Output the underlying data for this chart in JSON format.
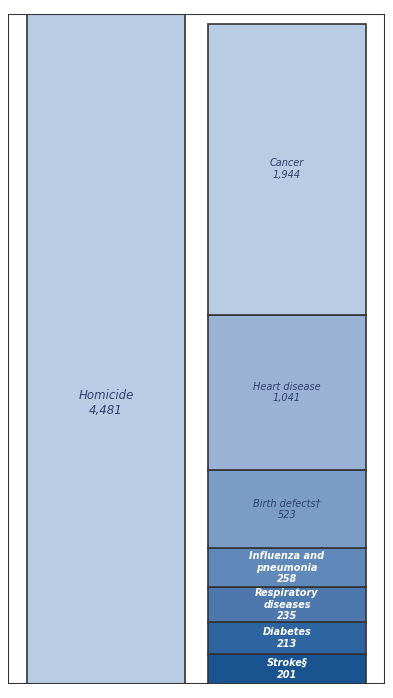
{
  "homicide_value": 4481,
  "homicide_label": "Homicide\n4,481",
  "homicide_color": "#b8cce4",
  "right_bars": [
    {
      "label": "Cancer\n1,944",
      "value": 1944,
      "color": "#b8cce4",
      "text_color": "#2f3f6b"
    },
    {
      "label": "Heart disease\n1,041",
      "value": 1041,
      "color": "#9ab3d5",
      "text_color": "#2f3f6b"
    },
    {
      "label": "Birth defects†\n523",
      "value": 523,
      "color": "#7a9cc6",
      "text_color": "#2f3f6b"
    },
    {
      "label": "Influenza and\npneumonia\n258",
      "value": 258,
      "color": "#6088b8",
      "text_color": "#ffffff"
    },
    {
      "label": "Respiratory\ndiseases\n235",
      "value": 235,
      "color": "#4d78ae",
      "text_color": "#ffffff"
    },
    {
      "label": "Diabetes\n213",
      "value": 213,
      "color": "#2e64a0",
      "text_color": "#ffffff"
    },
    {
      "label": "Stroke§\n201",
      "value": 201,
      "color": "#1a5490",
      "text_color": "#ffffff"
    }
  ],
  "background_color": "#ffffff",
  "border_color": "#333333",
  "fig_width": 3.93,
  "fig_height": 6.98
}
